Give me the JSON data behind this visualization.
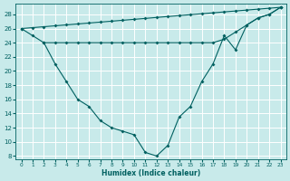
{
  "bg_color": "#c8eaea",
  "grid_color": "#ffffff",
  "line_color": "#006060",
  "line1_x": [
    0,
    1,
    2,
    3,
    4,
    5,
    6,
    7,
    8,
    9,
    10,
    11,
    12,
    13,
    14,
    15,
    16,
    17,
    18,
    19,
    20,
    21,
    22,
    23
  ],
  "line1_y": [
    26,
    25,
    24,
    21,
    18.5,
    16,
    15,
    13,
    12,
    11.5,
    11,
    8.5,
    8,
    9.5,
    13.5,
    15,
    18.5,
    21,
    25,
    23,
    26.5,
    27.5,
    28,
    29
  ],
  "line2_x": [
    0,
    1,
    2,
    3,
    4,
    5,
    6,
    7,
    8,
    9,
    10,
    11,
    12,
    13,
    14,
    15,
    16,
    17,
    18,
    19,
    20,
    21,
    22,
    23
  ],
  "line2_y": [
    26,
    26.13,
    26.26,
    26.39,
    26.52,
    26.65,
    26.78,
    26.91,
    27.04,
    27.17,
    27.3,
    27.43,
    27.57,
    27.7,
    27.83,
    27.96,
    28.09,
    28.22,
    28.35,
    28.48,
    28.61,
    28.74,
    28.87,
    29
  ],
  "line3_x": [
    2,
    3,
    4,
    5,
    6,
    7,
    8,
    9,
    10,
    11,
    12,
    13,
    14,
    15,
    16,
    17,
    18,
    19,
    20,
    21,
    22,
    23
  ],
  "line3_y": [
    24,
    24,
    24,
    24,
    24,
    24,
    24,
    24,
    24,
    24,
    24,
    24,
    24,
    24,
    24,
    24,
    24.5,
    25.5,
    26.5,
    27.5,
    28,
    29
  ],
  "xlabel": "Humidex (Indice chaleur)",
  "xlim": [
    -0.5,
    23.5
  ],
  "ylim": [
    7.5,
    29.5
  ],
  "yticks": [
    8,
    10,
    12,
    14,
    16,
    18,
    20,
    22,
    24,
    26,
    28
  ],
  "xticks": [
    0,
    1,
    2,
    3,
    4,
    5,
    6,
    7,
    8,
    9,
    10,
    11,
    12,
    13,
    14,
    15,
    16,
    17,
    18,
    19,
    20,
    21,
    22,
    23
  ]
}
